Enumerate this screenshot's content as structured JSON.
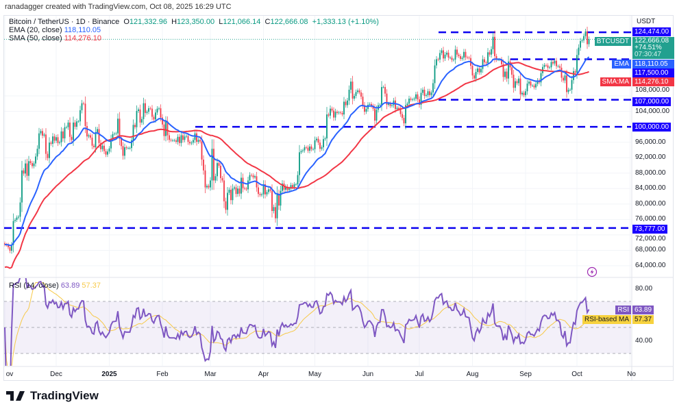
{
  "credit": "ranadagger created with TradingView.com, Oct 08, 2025 16:29 UTC",
  "legend": {
    "symbol": "Bitcoin / TetherUS · 1D · Binance",
    "o_label": "O",
    "o": "121,332.96",
    "h_label": "H",
    "h": "123,350.00",
    "l_label": "L",
    "l": "121,066.14",
    "c_label": "C",
    "c": "122,666.08",
    "change": "+1,333.13 (+1.10%)",
    "ema_label": "EMA (20, close)",
    "ema_value": "118,110.05",
    "sma_label": "SMA (50, close)",
    "sma_value": "114,276.10",
    "rsi_label": "RSI (14, close)",
    "rsi_value": "63.89",
    "rsi_ma_value": "57.37"
  },
  "price_axis": {
    "currency": "USDT",
    "ticks": [
      "108,000.00",
      "104,000.00",
      "96,000.00",
      "92,000.00",
      "88,000.00",
      "84,000.00",
      "80,000.00",
      "76,000.00",
      "72,000.00",
      "68,000.00",
      "64,000.00"
    ],
    "tick_values": [
      108,
      104,
      96,
      92,
      88,
      84,
      80,
      76,
      72,
      68,
      64
    ],
    "tags": {
      "level_124474": "124,474.00",
      "symbol": "BTCUSDT",
      "last_price": "122,666.08",
      "change_pct": "+74.51%",
      "countdown": "07:30:47",
      "ema_tag": "EMA",
      "ema_value": "118,110.05",
      "level_117500": "117,500.00",
      "sma_tag": "SMA:MA",
      "sma_value": "114,276.10",
      "level_107000": "107,000.00",
      "level_100000": "100,000.00",
      "level_73777": "73,777.00"
    }
  },
  "rsi_axis": {
    "ticks": [
      "80.00",
      "40.00"
    ],
    "rsi_tag": "RSI",
    "rsi_value": "63.89",
    "ma_tag": "RSI-based MA",
    "ma_value": "57.37"
  },
  "time_axis": [
    "ov",
    "Dec",
    "2025",
    "Feb",
    "Mar",
    "Apr",
    "May",
    "Jun",
    "Jul",
    "Aug",
    "Sep",
    "Oct",
    "No"
  ],
  "logo_text": "TradingView",
  "colors": {
    "up": "#089981",
    "down": "#f23645",
    "ema": "#2962ff",
    "sma": "#f23645",
    "level": "#0a00f0",
    "rsi": "#7e57c2",
    "rsi_ma": "#f7c948"
  },
  "chart_data": {
    "type": "candlestick",
    "symbol": "BTCUSDT",
    "interval": "1D",
    "x_start": "2024-11-01",
    "x_end": "2025-10-08",
    "unit": "thousand USDT",
    "closes": [
      69.5,
      69.4,
      68.8,
      67.9,
      69.4,
      75.6,
      75.9,
      76.5,
      76.7,
      80.4,
      88.7,
      87.9,
      90.5,
      87.3,
      91.1,
      90.6,
      89.8,
      90.5,
      92.3,
      94.3,
      98.3,
      98.9,
      97.7,
      98.0,
      93.0,
      91.9,
      95.9,
      95.6,
      97.5,
      96.4,
      97.3,
      95.8,
      96.0,
      98.8,
      97.0,
      99.9,
      99.9,
      101.1,
      97.4,
      96.6,
      101.1,
      100.0,
      101.4,
      101.4,
      104.3,
      106.1,
      106.0,
      100.2,
      97.5,
      97.8,
      97.2,
      95.1,
      94.7,
      98.6,
      99.4,
      95.8,
      94.2,
      95.1,
      93.7,
      92.8,
      93.6,
      94.4,
      96.9,
      98.1,
      98.2,
      98.3,
      102.1,
      96.9,
      95.0,
      92.5,
      94.7,
      94.5,
      94.5,
      94.5,
      96.5,
      100.5,
      99.9,
      104.1,
      104.5,
      101.1,
      102.0,
      106.1,
      103.6,
      103.9,
      104.8,
      104.7,
      102.6,
      101.9,
      103.7,
      104.7,
      104.8,
      102.4,
      100.6,
      97.6,
      101.4,
      97.8,
      96.6,
      96.5,
      96.5,
      96.5,
      96.1,
      97.4,
      95.8,
      97.8,
      96.6,
      97.5,
      97.6,
      96.1,
      95.7,
      95.9,
      96.6,
      98.3,
      96.1,
      96.6,
      96.2,
      91.5,
      88.7,
      84.3,
      84.7,
      84.3,
      86.1,
      94.3,
      86.1,
      87.2,
      90.6,
      89.9,
      86.7,
      86.1,
      80.7,
      78.5,
      82.9,
      83.7,
      81.0,
      84.0,
      84.3,
      82.6,
      84.0,
      82.7,
      86.8,
      84.1,
      84.0,
      83.8,
      86.1,
      87.5,
      87.4,
      86.9,
      87.2,
      84.3,
      82.6,
      82.3,
      82.5,
      85.1,
      82.5,
      83.1,
      83.8,
      83.4,
      78.2,
      79.2,
      76.3,
      82.6,
      79.6,
      83.4,
      85.3,
      83.7,
      84.5,
      83.6,
      84.0,
      84.9,
      84.4,
      85.1,
      85.1,
      87.5,
      93.4,
      93.7,
      93.9,
      94.7,
      94.6,
      93.8,
      94.9,
      94.2,
      94.2,
      96.5,
      96.9,
      95.9,
      94.3,
      94.7,
      96.8,
      97.0,
      103.2,
      102.9,
      104.7,
      104.2,
      102.4,
      103.9,
      103.6,
      103.7,
      103.6,
      103.2,
      106.5,
      105.6,
      106.8,
      109.6,
      111.7,
      107.3,
      108.0,
      109.0,
      109.4,
      108.9,
      107.8,
      105.6,
      103.9,
      104.6,
      105.7,
      105.9,
      105.4,
      104.7,
      101.6,
      104.4,
      105.6,
      105.7,
      110.3,
      110.3,
      108.6,
      105.7,
      106.0,
      105.4,
      105.6,
      106.8,
      104.6,
      104.9,
      104.6,
      103.3,
      102.3,
      100.9,
      105.6,
      106.0,
      107.3,
      107.0,
      107.1,
      107.3,
      108.4,
      107.1,
      105.7,
      108.8,
      109.6,
      108.0,
      108.2,
      109.2,
      108.2,
      108.9,
      111.3,
      115.9,
      117.5,
      117.4,
      119.1,
      119.8,
      117.7,
      118.7,
      119.2,
      117.9,
      117.9,
      117.3,
      117.4,
      120.0,
      118.7,
      118.3,
      117.6,
      117.9,
      119.4,
      118.0,
      117.9,
      117.8,
      115.8,
      113.3,
      112.5,
      114.2,
      115.1,
      114.1,
      115.0,
      117.5,
      116.7,
      116.5,
      119.3,
      118.7,
      120.1,
      123.3,
      118.3,
      117.4,
      117.4,
      117.4,
      116.2,
      112.9,
      114.3,
      112.5,
      116.9,
      115.4,
      113.5,
      110.1,
      111.8,
      111.3,
      112.5,
      108.4,
      108.8,
      108.2,
      109.2,
      111.2,
      111.7,
      110.7,
      110.7,
      110.2,
      111.1,
      112.0,
      111.5,
      113.9,
      115.5,
      116.0,
      115.9,
      115.3,
      115.4,
      116.8,
      116.4,
      117.1,
      115.7,
      115.7,
      115.3,
      112.7,
      112.0,
      113.3,
      109.0,
      109.6,
      109.6,
      112.1,
      114.4,
      114.0,
      118.6,
      120.5,
      122.2,
      122.4,
      123.5,
      124.7,
      121.4,
      122.67
    ],
    "horizontal_levels": [
      124.474,
      117.5,
      107.0,
      100.0,
      73.777
    ],
    "indicators": [
      "EMA 20",
      "SMA 50",
      "RSI 14",
      "RSI-based MA 14"
    ],
    "ylim": [
      62,
      127
    ],
    "rsi_levels": [
      70,
      50,
      30
    ],
    "grid": true
  }
}
